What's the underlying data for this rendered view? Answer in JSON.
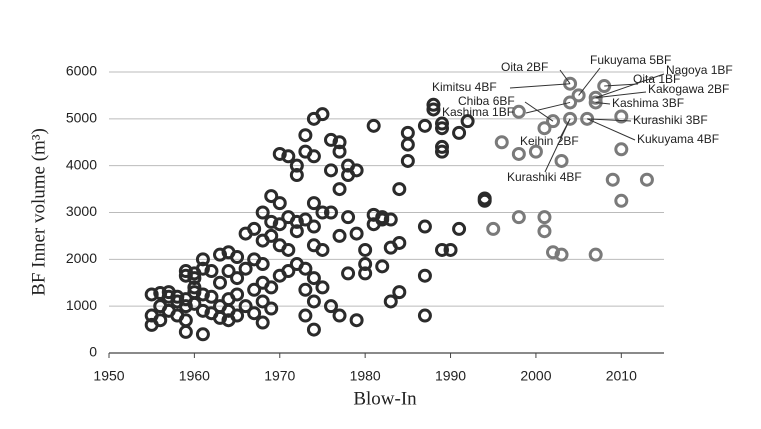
{
  "chart_data": {
    "type": "scatter",
    "y_label": "BF Inner volume (m³)",
    "x_label": "Blow-In",
    "xlim": [
      1950,
      2015
    ],
    "xticks": [
      1950,
      1960,
      1970,
      1980,
      1990,
      2000,
      2010
    ],
    "ylim": [
      0,
      6000
    ],
    "yticks": [
      0,
      1000,
      2000,
      3000,
      4000,
      5000,
      6000
    ],
    "grid": true,
    "series": [
      {
        "color": "#2b2b2b",
        "x": [
          1955,
          1955,
          1955,
          1956,
          1956,
          1956,
          1957,
          1957,
          1957,
          1958,
          1958,
          1958,
          1959,
          1959,
          1959,
          1959,
          1959,
          1959,
          1960,
          1960,
          1960,
          1960,
          1960,
          1961,
          1961,
          1961,
          1961,
          1961,
          1962,
          1962,
          1962,
          1963,
          1963,
          1963,
          1963,
          1964,
          1964,
          1964,
          1964,
          1964,
          1965,
          1965,
          1965,
          1965,
          1966,
          1966,
          1966,
          1967,
          1967,
          1967,
          1967,
          1968,
          1968,
          1968,
          1968,
          1968,
          1968,
          1969,
          1969,
          1969,
          1969,
          1969,
          1970,
          1970,
          1970,
          1970,
          1970,
          1971,
          1971,
          1971,
          1971,
          1972,
          1972,
          1972,
          1972,
          1972,
          1973,
          1973,
          1973,
          1973,
          1973,
          1973,
          1974,
          1974,
          1974,
          1974,
          1974,
          1974,
          1974,
          1974,
          1975,
          1975,
          1975,
          1975,
          1976,
          1976,
          1976,
          1976,
          1977,
          1977,
          1977,
          1977,
          1977,
          1978,
          1978,
          1978,
          1978,
          1979,
          1979,
          1979,
          1980,
          1980,
          1980,
          1981,
          1981,
          1981,
          1982,
          1982,
          1982,
          1983,
          1983,
          1983,
          1984,
          1984,
          1984,
          1985,
          1985,
          1985,
          1987,
          1987,
          1987,
          1987,
          1988,
          1988,
          1989,
          1989,
          1989,
          1989,
          1989,
          1990,
          1991,
          1991,
          1992,
          1994,
          1994
        ],
        "values": [
          1250,
          600,
          800,
          1280,
          1000,
          700,
          1300,
          1200,
          900,
          1200,
          1100,
          800,
          1650,
          1750,
          1150,
          1000,
          700,
          450,
          1600,
          1400,
          1300,
          1700,
          1050,
          2000,
          1800,
          1250,
          900,
          400,
          1750,
          1200,
          850,
          2100,
          1500,
          1000,
          750,
          2150,
          1750,
          1150,
          900,
          700,
          2050,
          1600,
          1250,
          800,
          2550,
          1800,
          1000,
          2650,
          2000,
          1350,
          850,
          3000,
          2400,
          1900,
          1500,
          1100,
          650,
          3350,
          2800,
          2500,
          1400,
          950,
          4250,
          3200,
          2750,
          2300,
          1650,
          4200,
          2900,
          2200,
          1750,
          4000,
          3800,
          2800,
          2600,
          1900,
          4650,
          4300,
          2850,
          1800,
          1350,
          800,
          5000,
          4200,
          3200,
          2700,
          2300,
          1600,
          1100,
          500,
          5100,
          3000,
          2200,
          1400,
          4550,
          3900,
          3000,
          1000,
          4500,
          4300,
          3500,
          2500,
          800,
          4000,
          3800,
          2900,
          1700,
          3900,
          2550,
          700,
          1700,
          2200,
          1900,
          4850,
          2950,
          2750,
          2900,
          2850,
          1850,
          2850,
          2250,
          1100,
          3500,
          2350,
          1300,
          4700,
          4450,
          4100,
          4850,
          2700,
          1650,
          800,
          5300,
          5200,
          4900,
          4800,
          4400,
          4300,
          2200,
          2200,
          4700,
          2650,
          4950,
          3300,
          3250
        ]
      },
      {
        "color": "#7a7a7a",
        "x": [
          1995,
          1996,
          1998,
          1998,
          1998,
          2000,
          2001,
          2001,
          2001,
          2002,
          2002,
          2003,
          2003,
          2004,
          2004,
          2004,
          2005,
          2006,
          2007,
          2007,
          2007,
          2008,
          2009,
          2010,
          2010,
          2010,
          2013
        ],
        "values": [
          2650,
          4500,
          5150,
          4250,
          2900,
          4300,
          4800,
          2600,
          2900,
          2150,
          4950,
          4100,
          2100,
          5750,
          5350,
          5000,
          5500,
          5000,
          5450,
          5350,
          2100,
          5700,
          3700,
          3250,
          4350,
          5050,
          3700
        ]
      }
    ],
    "annotations": [
      {
        "text": "Oita 2BF",
        "x": 2004,
        "y": 5750
      },
      {
        "text": "Fukuyama 5BF",
        "x": 2005,
        "y": 5500
      },
      {
        "text": "Oita 1BF",
        "x": 2008,
        "y": 5700
      },
      {
        "text": "Nagoya 1BF",
        "x": 2007,
        "y": 5450
      },
      {
        "text": "Kimitsu 4BF",
        "x": 2004,
        "y": 5750
      },
      {
        "text": "Kashima 1BF",
        "x": 2004,
        "y": 5350
      },
      {
        "text": "Kakogawa 2BF",
        "x": 2007,
        "y": 5450
      },
      {
        "text": "Chiba 6BF",
        "x": 2002,
        "y": 4950
      },
      {
        "text": "Kashima 3BF",
        "x": 2007,
        "y": 5350
      },
      {
        "text": "Kurashiki 3BF",
        "x": 2006,
        "y": 5000
      },
      {
        "text": "Keihin 2BF",
        "x": 2004,
        "y": 5000
      },
      {
        "text": "Kukuyama 4BF",
        "x": 2006,
        "y": 5000
      },
      {
        "text": "Kurashiki 4BF",
        "x": 2004,
        "y": 5000
      }
    ]
  }
}
